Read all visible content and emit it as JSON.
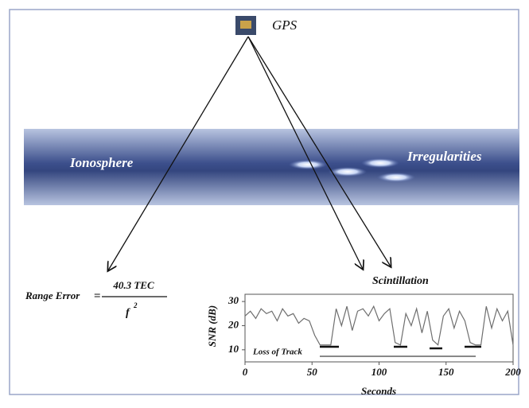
{
  "labels": {
    "satellite": "GPS",
    "layer": "Ionosphere",
    "irregularities": "Irregularities",
    "scintillation": "Scintillation"
  },
  "formula": {
    "lhs": "Range Error",
    "equals": "=",
    "numerator": "40.3 TEC",
    "denominator": "f",
    "exponent": "2"
  },
  "chart_data": {
    "type": "line",
    "xlabel": "Seconds",
    "ylabel": "SNR (dB)",
    "annotation": "Loss of Track",
    "color": "#6e6e6e",
    "x": [
      0,
      4,
      8,
      12,
      16,
      20,
      24,
      28,
      32,
      36,
      40,
      44,
      48,
      52,
      56,
      60,
      64,
      68,
      72,
      76,
      80,
      84,
      88,
      92,
      96,
      100,
      104,
      108,
      112,
      116,
      120,
      124,
      128,
      132,
      136,
      140,
      144,
      148,
      152,
      156,
      160,
      164,
      168,
      172,
      176,
      180,
      184,
      188,
      192,
      196,
      200
    ],
    "values": [
      24,
      26,
      23,
      27,
      25,
      26,
      22,
      27,
      24,
      25,
      21,
      23,
      22,
      16,
      12,
      12,
      12,
      27,
      20,
      28,
      18,
      26,
      27,
      24,
      28,
      22,
      25,
      27,
      13,
      12,
      25,
      20,
      27,
      17,
      26,
      14,
      12,
      24,
      27,
      19,
      26,
      22,
      13,
      12,
      12,
      28,
      19,
      27,
      22,
      26,
      12
    ],
    "xlim": [
      0,
      200
    ],
    "ylim": [
      5,
      33
    ],
    "xticks": [
      0,
      50,
      100,
      150,
      200
    ],
    "yticks": [
      10,
      20,
      30
    ]
  }
}
